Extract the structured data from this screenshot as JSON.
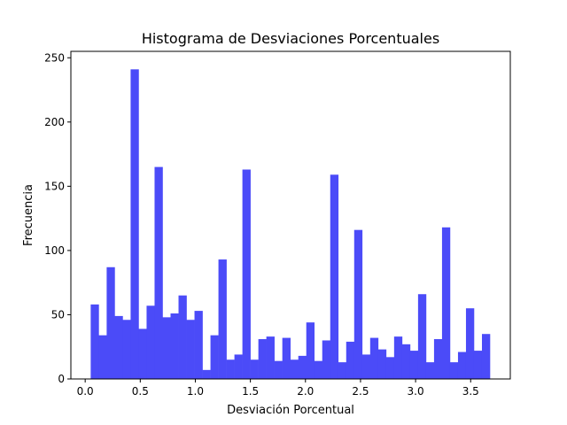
{
  "chart_data": {
    "type": "bar",
    "title": "Histograma de Desviaciones Porcentuales",
    "xlabel": "Desviación Porcentual",
    "ylabel": "Frecuencia",
    "xlim": [
      -0.13,
      3.86
    ],
    "ylim": [
      0,
      255
    ],
    "x_ticks": [
      0.0,
      0.5,
      1.0,
      1.5,
      2.0,
      2.5,
      3.0,
      3.5
    ],
    "x_tick_labels": [
      "0.0",
      "0.5",
      "1.0",
      "1.5",
      "2.0",
      "2.5",
      "3.0",
      "3.5"
    ],
    "y_ticks": [
      0,
      50,
      100,
      150,
      200,
      250
    ],
    "y_tick_labels": [
      "0",
      "50",
      "100",
      "150",
      "200",
      "250"
    ],
    "grid": false,
    "bar_color": "#4b4bf8",
    "bin_start": 0.05,
    "bin_width": 0.0725,
    "values": [
      58,
      34,
      87,
      49,
      46,
      241,
      39,
      57,
      165,
      48,
      51,
      65,
      46,
      53,
      7,
      34,
      93,
      15,
      19,
      163,
      15,
      31,
      33,
      14,
      32,
      15,
      18,
      44,
      14,
      30,
      159,
      13,
      29,
      116,
      19,
      32,
      23,
      17,
      33,
      27,
      22,
      66,
      13,
      31,
      118,
      13,
      21,
      55,
      22,
      35
    ]
  }
}
